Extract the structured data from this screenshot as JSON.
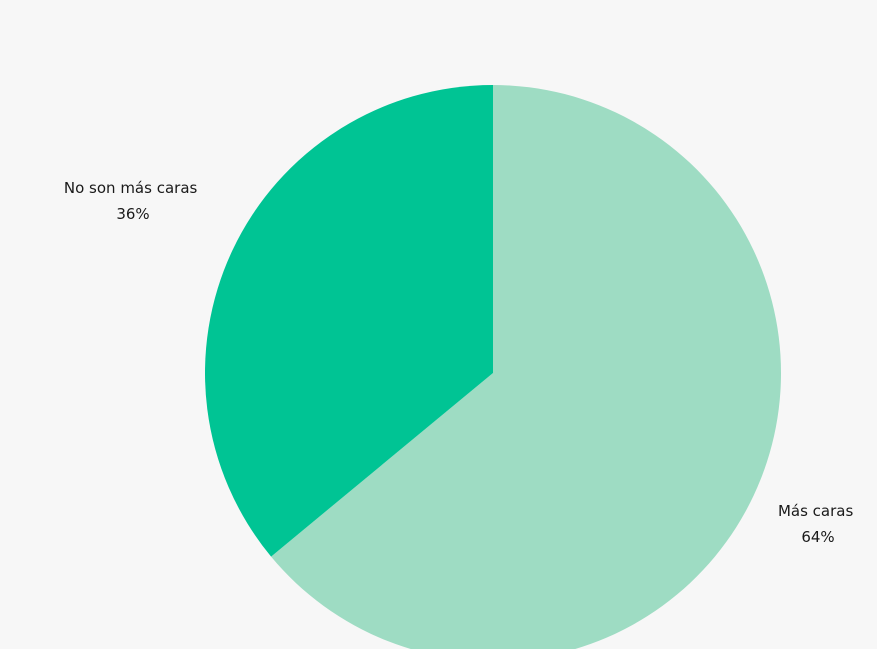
{
  "chart_data": {
    "type": "pie",
    "slices": [
      {
        "label": "Más caras",
        "value": 64,
        "value_label": "64%",
        "color": "#9edcc3"
      },
      {
        "label": "No son más caras",
        "value": 36,
        "value_label": "36%",
        "color": "#00c494"
      }
    ],
    "start_angle": "12 o'clock",
    "direction": "clockwise",
    "legend": "none"
  }
}
